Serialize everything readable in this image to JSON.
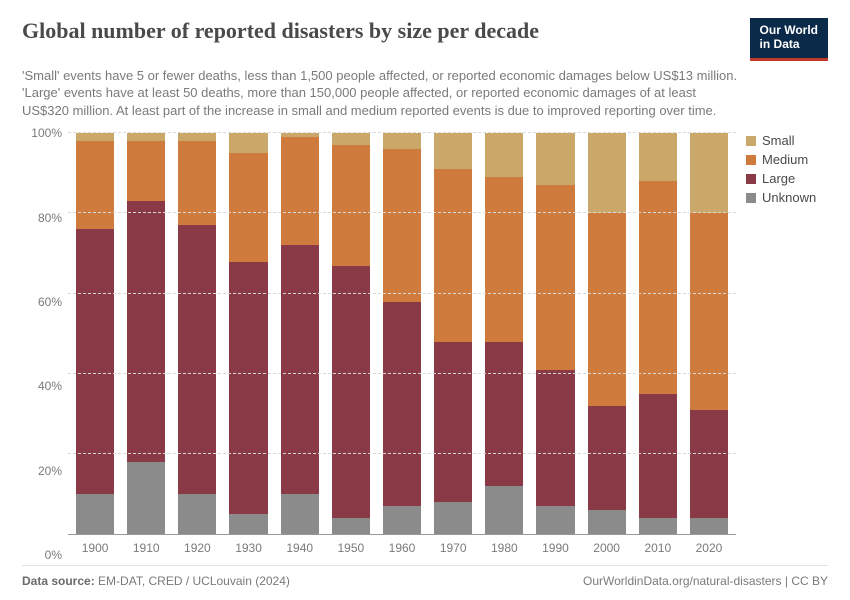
{
  "header": {
    "title": "Global number of reported disasters by size per decade",
    "title_fontsize": 22,
    "subtitle": "'Small' events have 5 or fewer deaths, less than 1,500 people affected, or reported economic damages below US$13 million. 'Large' events have at least 50 deaths, more than 150,000 people affected, or reported economic damages of at least US$320 million. At least part of the increase in small and medium reported events is due to improved reporting over time.",
    "subtitle_fontsize": 13,
    "logo_line1": "Our World",
    "logo_line2": "in Data",
    "logo_bg": "#0b2a4a",
    "logo_accent": "#c0392b"
  },
  "chart": {
    "type": "stacked-bar-100",
    "background_color": "#ffffff",
    "grid_color": "#d8d8d8",
    "axis_line_color": "#999999",
    "tick_fontsize": 12,
    "tick_color": "#7a7a7a",
    "ylim": [
      0,
      100
    ],
    "yticks": [
      0,
      20,
      40,
      60,
      80,
      100
    ],
    "ytick_labels": [
      "0%",
      "20%",
      "40%",
      "60%",
      "80%",
      "100%"
    ],
    "categories": [
      "1900",
      "1910",
      "1920",
      "1930",
      "1940",
      "1950",
      "1960",
      "1970",
      "1980",
      "1990",
      "2000",
      "2010",
      "2020"
    ],
    "series_order": [
      "Unknown",
      "Large",
      "Medium",
      "Small"
    ],
    "series": {
      "Unknown": {
        "label": "Unknown",
        "color": "#8b8b8b",
        "values": [
          10,
          18,
          10,
          5,
          10,
          4,
          7,
          8,
          12,
          7,
          6,
          4,
          4
        ]
      },
      "Large": {
        "label": "Large",
        "color": "#8a3a46",
        "values": [
          66,
          65,
          67,
          63,
          62,
          63,
          51,
          40,
          36,
          34,
          26,
          31,
          27
        ]
      },
      "Medium": {
        "label": "Medium",
        "color": "#cf7b3e",
        "values": [
          22,
          15,
          21,
          27,
          27,
          30,
          38,
          43,
          41,
          46,
          48,
          53,
          49
        ]
      },
      "Small": {
        "label": "Small",
        "color": "#c9a86a",
        "values": [
          2,
          2,
          2,
          5,
          1,
          3,
          4,
          9,
          11,
          13,
          20,
          12,
          20
        ]
      }
    },
    "legend_order": [
      "Small",
      "Medium",
      "Large",
      "Unknown"
    ],
    "bar_gap_pct": 2.0
  },
  "footer": {
    "source_label": "Data source:",
    "source_text": "EM-DAT, CRED / UCLouvain (2024)",
    "attribution": "OurWorldinData.org/natural-disasters | CC BY"
  }
}
